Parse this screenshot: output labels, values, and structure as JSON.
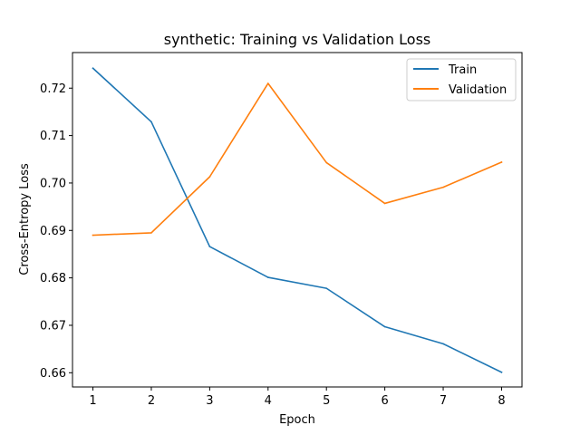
{
  "chart_data": {
    "type": "line",
    "title": "synthetic: Training vs Validation Loss",
    "xlabel": "Epoch",
    "ylabel": "Cross-Entropy Loss",
    "x": [
      1,
      2,
      3,
      4,
      5,
      6,
      7,
      8
    ],
    "x_ticks": [
      "1",
      "2",
      "3",
      "4",
      "5",
      "6",
      "7",
      "8"
    ],
    "y_ticks": [
      "0.66",
      "0.67",
      "0.68",
      "0.69",
      "0.70",
      "0.71",
      "0.72"
    ],
    "xlim": [
      0.65,
      8.35
    ],
    "ylim": [
      0.657,
      0.7275
    ],
    "grid": false,
    "legend_position": "top-right",
    "series": [
      {
        "name": "Train",
        "color": "#1f77b4",
        "values": [
          0.7242,
          0.7129,
          0.6866,
          0.6801,
          0.6778,
          0.6697,
          0.6661,
          0.6601
        ]
      },
      {
        "name": "Validation",
        "color": "#ff7f0e",
        "values": [
          0.689,
          0.6895,
          0.7013,
          0.721,
          0.7043,
          0.6957,
          0.6991,
          0.7044
        ]
      }
    ]
  }
}
